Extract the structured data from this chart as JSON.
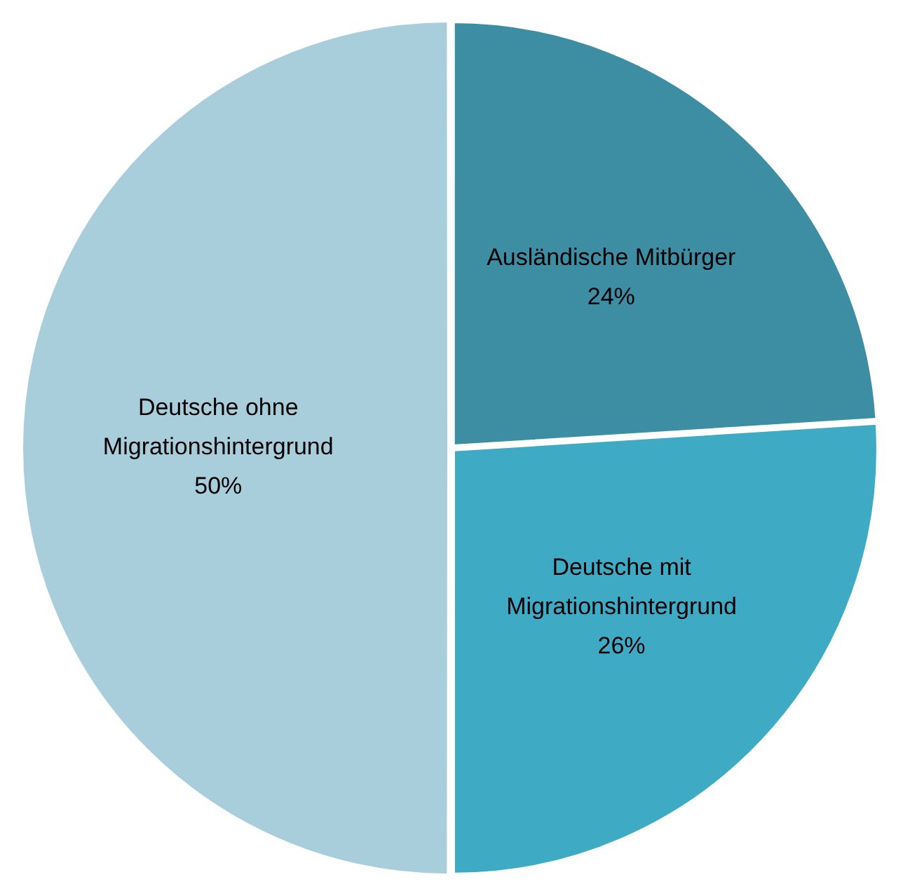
{
  "chart_data": {
    "type": "pie",
    "categories": [
      "Ausländische Mitbürger",
      "Deutsche mit Migrationshintergrund",
      "Deutsche ohne Migrationshintergrund"
    ],
    "values": [
      24,
      26,
      50
    ],
    "colors": [
      "#3d8ea3",
      "#3eaac4",
      "#a9cedb"
    ],
    "value_labels": [
      "24%",
      "26%",
      "50%"
    ],
    "legend": false
  }
}
